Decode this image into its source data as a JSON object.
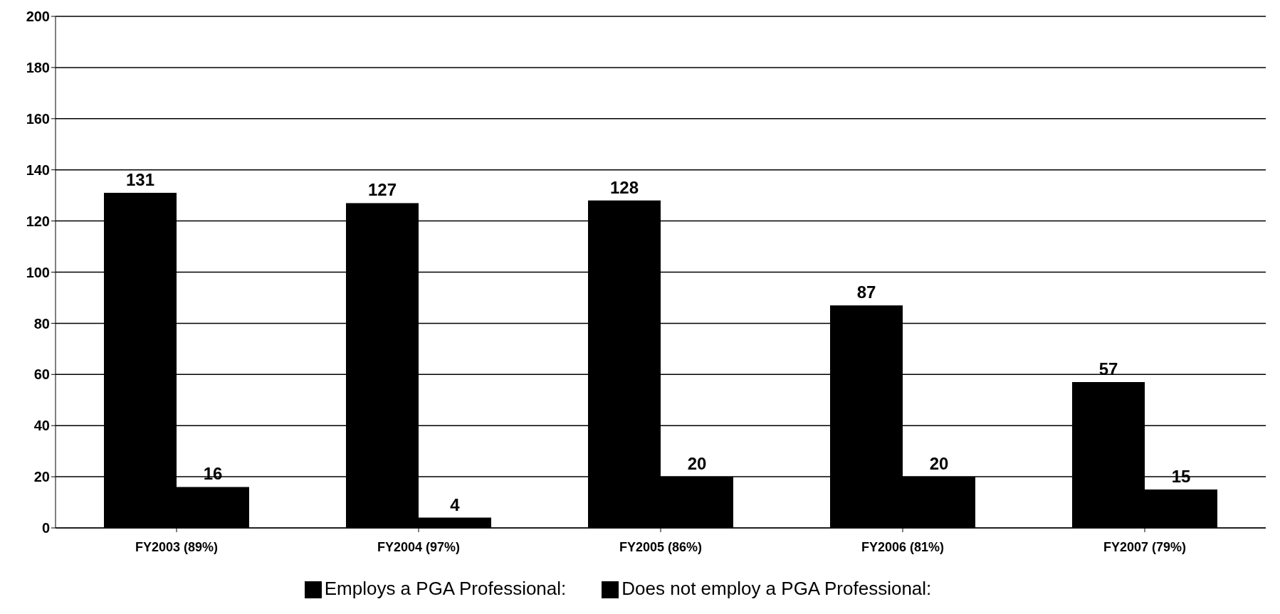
{
  "chart_data": {
    "type": "bar",
    "categories": [
      "FY2003 (89%)",
      "FY2004 (97%)",
      "FY2005 (86%)",
      "FY2006 (81%)",
      "FY2007 (79%)"
    ],
    "series": [
      {
        "name": "Employs a PGA Professional:",
        "color": "#000000",
        "values": [
          131,
          127,
          128,
          87,
          57
        ]
      },
      {
        "name": "Does not employ a PGA Professional:",
        "color": "#000000",
        "values": [
          16,
          4,
          20,
          20,
          15
        ]
      }
    ],
    "ylim": [
      0,
      200
    ],
    "yticks": [
      0,
      20,
      40,
      60,
      80,
      100,
      120,
      140,
      160,
      180,
      200
    ],
    "grid": "y",
    "legend": "bottom",
    "data_labels": true
  }
}
